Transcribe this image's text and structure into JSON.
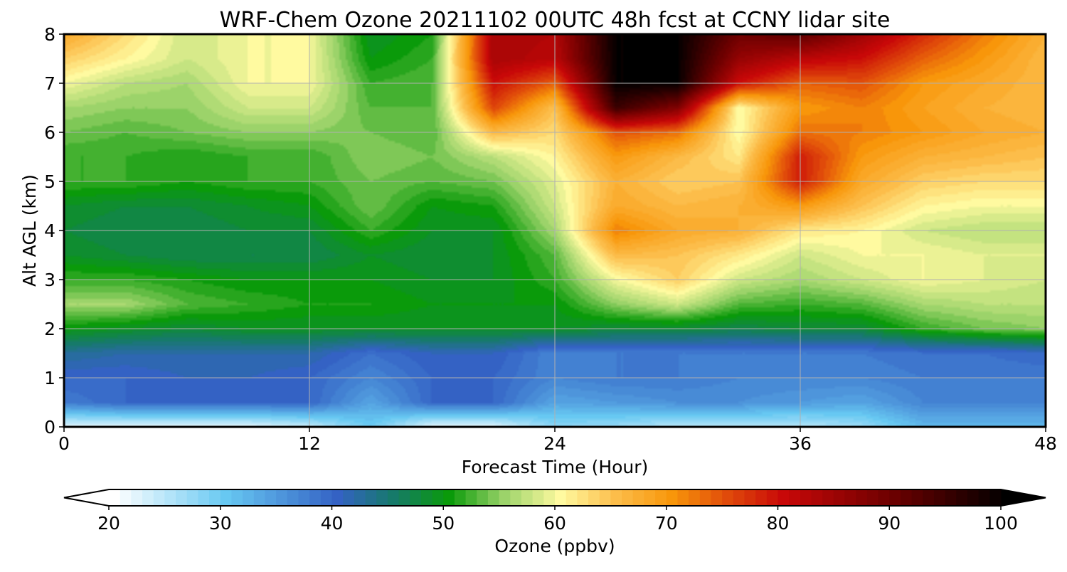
{
  "chart_data": {
    "type": "heatmap",
    "title": "WRF-Chem Ozone  20211102 00UTC 48h fcst at CCNY lidar site",
    "xlabel": "Forecast Time (Hour)",
    "ylabel": "Alt AGL (km)",
    "xlim": [
      0,
      48
    ],
    "ylim": [
      0,
      8
    ],
    "xticks": [
      0,
      12,
      24,
      36,
      48
    ],
    "yticks": [
      0,
      1,
      2,
      3,
      4,
      5,
      6,
      7,
      8
    ],
    "grid": true,
    "colorbar": {
      "label": "Ozone  (ppbv)",
      "min": 20,
      "max": 100,
      "ticks": [
        20,
        30,
        40,
        50,
        60,
        70,
        80,
        90,
        100
      ],
      "extend": "both",
      "colors": [
        {
          "v": 20,
          "c": "#ffffff"
        },
        {
          "v": 30,
          "c": "#67c8f2"
        },
        {
          "v": 40,
          "c": "#3462c4"
        },
        {
          "v": 45,
          "c": "#167a6a"
        },
        {
          "v": 50,
          "c": "#0a9a0a"
        },
        {
          "v": 55,
          "c": "#9cd36a"
        },
        {
          "v": 60,
          "c": "#fffaa0"
        },
        {
          "v": 65,
          "c": "#fcbd4a"
        },
        {
          "v": 70,
          "c": "#f8960a"
        },
        {
          "v": 75,
          "c": "#e04a0a"
        },
        {
          "v": 80,
          "c": "#c80808"
        },
        {
          "v": 90,
          "c": "#6a0000"
        },
        {
          "v": 100,
          "c": "#000000"
        }
      ]
    },
    "x_hours": [
      0,
      3,
      6,
      9,
      12,
      15,
      18,
      21,
      24,
      27,
      30,
      33,
      36,
      39,
      42,
      45,
      48
    ],
    "y_km": [
      0,
      0.5,
      1,
      1.5,
      2,
      2.5,
      3,
      3.5,
      4,
      4.5,
      5,
      5.5,
      6,
      6.5,
      7,
      7.5,
      8
    ],
    "z_ppbv": [
      [
        22,
        22,
        22,
        22,
        24,
        30,
        22,
        22,
        28,
        27,
        25,
        25,
        25,
        27,
        32,
        32,
        32
      ],
      [
        38,
        40,
        40,
        40,
        40,
        34,
        40,
        40,
        34,
        35,
        36,
        36,
        35,
        34,
        37,
        37,
        37
      ],
      [
        40,
        40,
        41,
        41,
        40,
        37,
        40,
        40,
        37,
        38,
        38,
        37,
        37,
        37,
        38,
        38,
        38
      ],
      [
        43,
        42,
        42,
        42,
        42,
        39,
        41,
        41,
        37,
        38,
        38,
        38,
        38,
        38,
        39,
        39,
        40
      ],
      [
        50,
        49,
        48,
        49,
        49,
        49,
        49,
        49,
        49,
        48,
        48,
        47,
        48,
        48,
        52,
        54,
        55
      ],
      [
        56,
        56,
        53,
        52,
        51,
        51,
        50,
        50,
        50,
        55,
        58,
        53,
        52,
        53,
        56,
        57,
        57
      ],
      [
        52,
        52,
        51,
        50,
        50,
        50,
        49,
        49,
        52,
        60,
        64,
        58,
        56,
        58,
        60,
        59,
        58
      ],
      [
        49,
        48,
        47,
        47,
        47,
        49,
        48,
        49,
        53,
        66,
        65,
        62,
        58,
        60,
        60,
        59,
        59
      ],
      [
        48,
        47,
        47,
        48,
        48,
        52,
        49,
        49,
        56,
        72,
        68,
        67,
        62,
        61,
        58,
        57,
        57
      ],
      [
        49,
        48,
        48,
        49,
        50,
        54,
        50,
        51,
        58,
        68,
        66,
        67,
        70,
        65,
        61,
        60,
        60
      ],
      [
        52,
        52,
        51,
        52,
        52,
        54,
        53,
        54,
        59,
        67,
        64,
        65,
        79,
        68,
        64,
        63,
        63
      ],
      [
        52,
        52,
        51,
        52,
        52,
        55,
        54,
        57,
        61,
        70,
        66,
        62,
        79,
        70,
        67,
        66,
        65
      ],
      [
        54,
        53,
        54,
        55,
        55,
        54,
        53,
        66,
        63,
        75,
        73,
        60,
        73,
        72,
        70,
        68,
        67
      ],
      [
        56,
        55,
        55,
        58,
        58,
        53,
        53,
        76,
        65,
        95,
        88,
        60,
        70,
        72,
        69,
        67,
        66
      ],
      [
        60,
        57,
        56,
        60,
        60,
        52,
        53,
        80,
        74,
        100,
        100,
        80,
        74,
        75,
        70,
        68,
        66
      ],
      [
        64,
        61,
        58,
        60,
        60,
        50,
        52,
        84,
        82,
        100,
        100,
        86,
        82,
        80,
        74,
        70,
        66
      ],
      [
        68,
        63,
        58,
        60,
        60,
        49,
        51,
        84,
        83,
        100,
        100,
        90,
        92,
        85,
        78,
        72,
        67
      ]
    ]
  }
}
